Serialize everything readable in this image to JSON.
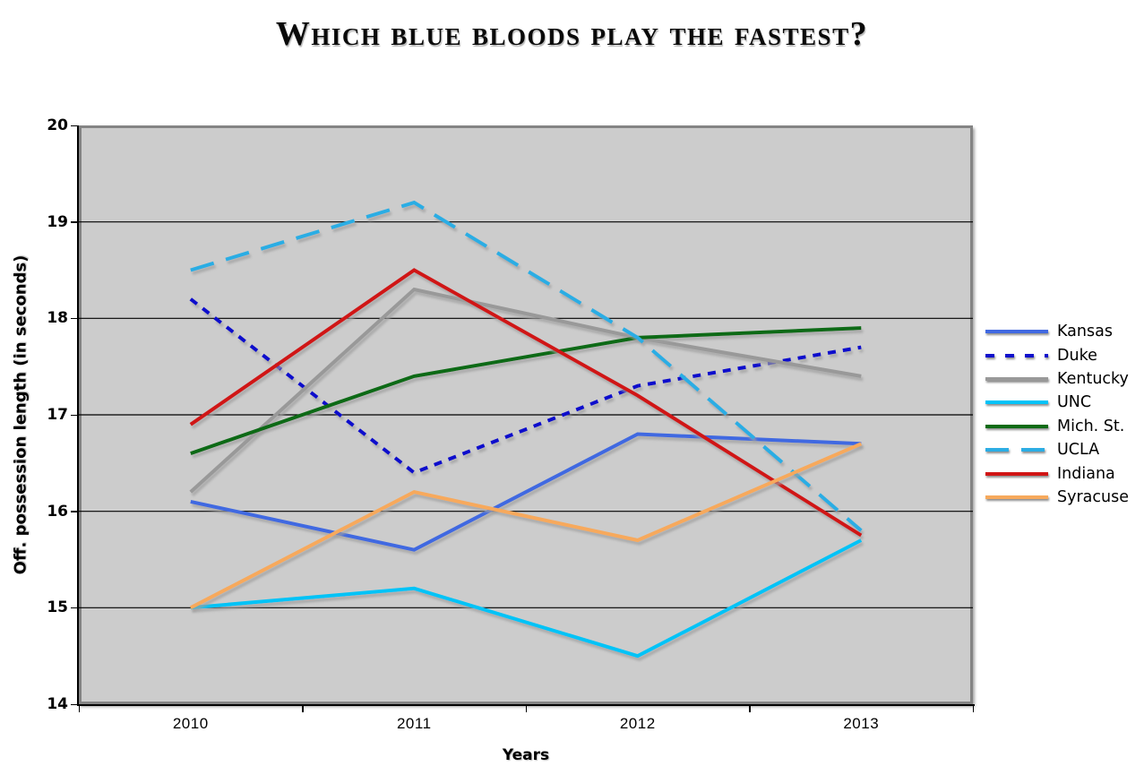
{
  "title": "Which blue bloods play the fastest?",
  "chart_data": {
    "type": "line",
    "title": "Which blue bloods play the fastest?",
    "xlabel": "Years",
    "ylabel": "Off. possession length (in seconds)",
    "categories": [
      "2010",
      "2011",
      "2012",
      "2013"
    ],
    "ylim": [
      14,
      20
    ],
    "y_ticks": [
      20,
      19,
      18,
      17,
      16,
      15,
      14
    ],
    "grid": "horizontal",
    "legend_position": "right-middle",
    "series": [
      {
        "name": "Kansas",
        "color": "#4169E1",
        "style": "solid",
        "values": [
          16.1,
          15.6,
          16.8,
          16.7
        ]
      },
      {
        "name": "Duke",
        "color": "#1111CC",
        "style": "dotted",
        "values": [
          18.2,
          16.4,
          17.3,
          17.7
        ]
      },
      {
        "name": "Kentucky",
        "color": "#999999",
        "style": "solid",
        "values": [
          16.2,
          18.3,
          17.8,
          17.4
        ]
      },
      {
        "name": "UNC",
        "color": "#00C3F7",
        "style": "solid",
        "values": [
          15.0,
          15.2,
          14.5,
          15.7
        ]
      },
      {
        "name": "Mich. St.",
        "color": "#0E6B15",
        "style": "solid",
        "values": [
          16.6,
          17.4,
          17.8,
          17.9
        ]
      },
      {
        "name": "UCLA",
        "color": "#2CADE4",
        "style": "dashed",
        "values": [
          18.5,
          19.2,
          17.8,
          15.8
        ]
      },
      {
        "name": "Indiana",
        "color": "#D01414",
        "style": "solid",
        "values": [
          16.9,
          18.5,
          17.2,
          15.75
        ]
      },
      {
        "name": "Syracuse",
        "color": "#F7A95C",
        "style": "solid",
        "values": [
          15.0,
          16.2,
          15.7,
          16.7
        ]
      }
    ]
  },
  "colors": {
    "background": "#FFFFFF",
    "plot_bg": "#CCCCCC",
    "plot_border": "#848484",
    "gridline": "#000000",
    "text": "#000000"
  }
}
